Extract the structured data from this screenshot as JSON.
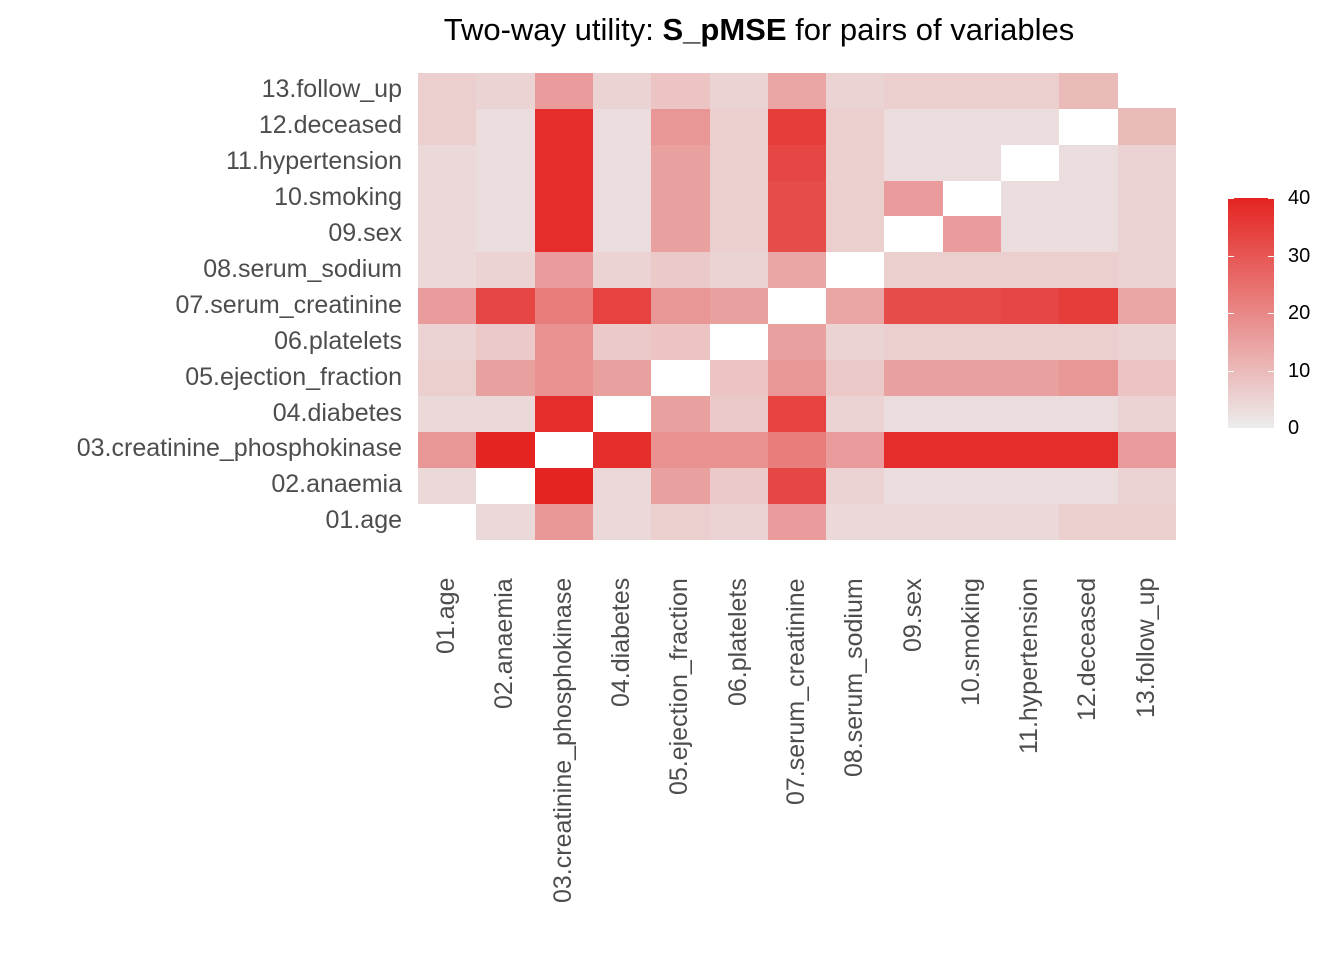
{
  "chart_data": {
    "type": "heatmap",
    "title_prefix": "Two-way utility: ",
    "title_bold": "S_pMSE",
    "title_suffix": " for pairs of variables",
    "variables": [
      "01.age",
      "02.anaemia",
      "03.creatinine_phosphokinase",
      "04.diabetes",
      "05.ejection_fraction",
      "06.platelets",
      "07.serum_creatinine",
      "08.serum_sodium",
      "09.sex",
      "10.smoking",
      "11.hypertension",
      "12.deceased",
      "13.follow_up"
    ],
    "matrix": [
      [
        null,
        4,
        17,
        4,
        6,
        5,
        16,
        4,
        4,
        4,
        4,
        6,
        6
      ],
      [
        4,
        null,
        40,
        4,
        15,
        7,
        33,
        5,
        3,
        3,
        3,
        3,
        5
      ],
      [
        17,
        40,
        null,
        38,
        18,
        18,
        22,
        16,
        38,
        38,
        38,
        38,
        16
      ],
      [
        4,
        4,
        38,
        null,
        15,
        7,
        34,
        5,
        3,
        3,
        3,
        3,
        5
      ],
      [
        6,
        15,
        18,
        15,
        null,
        8,
        17,
        7,
        15,
        15,
        15,
        17,
        8
      ],
      [
        5,
        7,
        18,
        7,
        8,
        null,
        15,
        5,
        6,
        6,
        6,
        6,
        5
      ],
      [
        16,
        33,
        22,
        34,
        17,
        15,
        null,
        14,
        32,
        32,
        33,
        35,
        14
      ],
      [
        4,
        5,
        16,
        5,
        7,
        5,
        14,
        null,
        6,
        6,
        6,
        6,
        5
      ],
      [
        4,
        3,
        38,
        3,
        15,
        6,
        32,
        6,
        null,
        16,
        3,
        3,
        5
      ],
      [
        4,
        3,
        38,
        3,
        15,
        6,
        32,
        6,
        16,
        null,
        3,
        3,
        5
      ],
      [
        4,
        3,
        38,
        3,
        15,
        6,
        33,
        6,
        3,
        3,
        null,
        3,
        5
      ],
      [
        6,
        3,
        38,
        3,
        17,
        6,
        35,
        6,
        3,
        3,
        3,
        null,
        10
      ],
      [
        6,
        5,
        16,
        5,
        8,
        5,
        14,
        5,
        6,
        6,
        6,
        10,
        null
      ]
    ],
    "color_scale": {
      "low": "#ececec",
      "high": "#e52421",
      "na": "#ffffff",
      "range": [
        0,
        40
      ]
    },
    "legend": {
      "ticks": [
        0,
        10,
        20,
        30,
        40
      ],
      "position": "right"
    }
  }
}
